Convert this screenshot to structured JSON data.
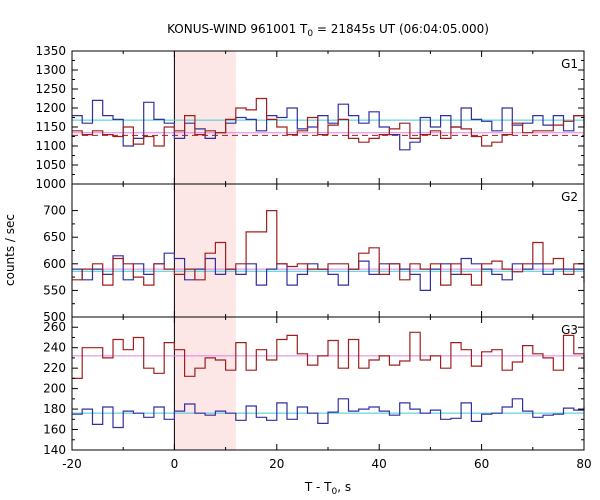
{
  "chart_data": {
    "type": "line",
    "title": {
      "pre": "KONUS-WIND 961001 T",
      "sub": "0",
      "post": " = 21845s UT (06:04:05.000)"
    },
    "xlabel": {
      "pre": "T - T",
      "sub": "0",
      "post": ", s"
    },
    "ylabel": "counts / sec",
    "xlim": [
      -20,
      80
    ],
    "xticks": [
      -20,
      0,
      20,
      40,
      60,
      80
    ],
    "highlight_interval": [
      0,
      12
    ],
    "bin_width": 2,
    "colors": {
      "red_curve": "#a01e1e",
      "blue_curve": "#3030a0",
      "red_fit": "#e080e0",
      "blue_fit": "#40c8d8",
      "highlight": "#fde6e6"
    },
    "panels": [
      {
        "name": "G1",
        "ylim": [
          1000,
          1350
        ],
        "yticks": [
          1000,
          1050,
          1100,
          1150,
          1200,
          1250,
          1300,
          1350
        ],
        "ytick_labels": [
          "1000",
          "1050",
          "1100",
          "1150",
          "1200",
          "1250",
          "1300",
          "1350"
        ],
        "red_fit": 1135,
        "red_dashed": 1128,
        "blue_fit": 1168,
        "red": {
          "x0": -20,
          "values": [
            1140,
            1130,
            1140,
            1130,
            1125,
            1150,
            1105,
            1125,
            1100,
            1150,
            1140,
            1180,
            1130,
            1140,
            1135,
            1170,
            1200,
            1195,
            1225,
            1170,
            1150,
            1130,
            1140,
            1175,
            1130,
            1155,
            1170,
            1120,
            1110,
            1120,
            1130,
            1145,
            1160,
            1120,
            1130,
            1140,
            1120,
            1150,
            1145,
            1125,
            1100,
            1110,
            1130,
            1160,
            1135,
            1140,
            1140,
            1155,
            1165,
            1180,
            1125
          ]
        },
        "blue": {
          "x0": -20,
          "values": [
            1180,
            1160,
            1220,
            1180,
            1170,
            1100,
            1120,
            1215,
            1170,
            1160,
            1120,
            1160,
            1145,
            1120,
            1135,
            1160,
            1175,
            1170,
            1140,
            1180,
            1175,
            1200,
            1145,
            1150,
            1180,
            1160,
            1210,
            1180,
            1160,
            1190,
            1150,
            1130,
            1090,
            1110,
            1175,
            1150,
            1180,
            1150,
            1200,
            1170,
            1165,
            1140,
            1200,
            1155,
            1160,
            1180,
            1155,
            1180,
            1140,
            1180,
            1150
          ]
        }
      },
      {
        "name": "G2",
        "ylim": [
          500,
          750
        ],
        "yticks": [
          500,
          550,
          600,
          650,
          700
        ],
        "ytick_labels": [
          "500",
          "550",
          "600",
          "650",
          "700"
        ],
        "red_fit": 590,
        "blue_fit": 586,
        "red": {
          "x0": -20,
          "values": [
            570,
            590,
            600,
            560,
            610,
            600,
            575,
            560,
            600,
            590,
            580,
            590,
            570,
            620,
            640,
            590,
            600,
            660,
            660,
            700,
            600,
            595,
            600,
            590,
            590,
            600,
            600,
            590,
            620,
            630,
            580,
            600,
            570,
            600,
            590,
            600,
            560,
            600,
            580,
            560,
            600,
            605,
            590,
            585,
            600,
            640,
            600,
            610,
            580,
            600,
            565
          ]
        },
        "blue": {
          "x0": -20,
          "values": [
            590,
            570,
            590,
            580,
            615,
            570,
            600,
            580,
            600,
            620,
            610,
            570,
            590,
            610,
            580,
            590,
            580,
            600,
            560,
            590,
            600,
            560,
            580,
            600,
            590,
            580,
            560,
            590,
            605,
            580,
            600,
            600,
            590,
            580,
            550,
            590,
            600,
            580,
            610,
            600,
            590,
            580,
            570,
            600,
            590,
            600,
            580,
            590,
            590,
            590,
            590
          ]
        }
      },
      {
        "name": "G3",
        "ylim": [
          140,
          270
        ],
        "yticks": [
          140,
          160,
          180,
          200,
          220,
          240,
          260
        ],
        "ytick_labels": [
          "140",
          "160",
          "180",
          "200",
          "220",
          "240",
          "260"
        ],
        "red_fit": 232,
        "blue_fit": 176,
        "red": {
          "x0": -20,
          "values": [
            210,
            240,
            240,
            230,
            248,
            238,
            250,
            220,
            215,
            245,
            238,
            212,
            220,
            230,
            228,
            218,
            245,
            218,
            238,
            228,
            248,
            252,
            234,
            223,
            232,
            247,
            220,
            248,
            220,
            228,
            232,
            223,
            227,
            255,
            228,
            232,
            220,
            245,
            238,
            222,
            236,
            238,
            218,
            226,
            242,
            234,
            230,
            218,
            252,
            234,
            215
          ]
        },
        "blue": {
          "x0": -20,
          "values": [
            175,
            180,
            165,
            182,
            162,
            178,
            176,
            172,
            182,
            170,
            178,
            185,
            176,
            174,
            178,
            176,
            169,
            183,
            172,
            169,
            186,
            170,
            182,
            176,
            166,
            177,
            190,
            178,
            180,
            182,
            178,
            174,
            186,
            180,
            176,
            179,
            170,
            171,
            186,
            168,
            175,
            176,
            182,
            190,
            178,
            172,
            174,
            175,
            181,
            179,
            182
          ]
        }
      }
    ]
  }
}
